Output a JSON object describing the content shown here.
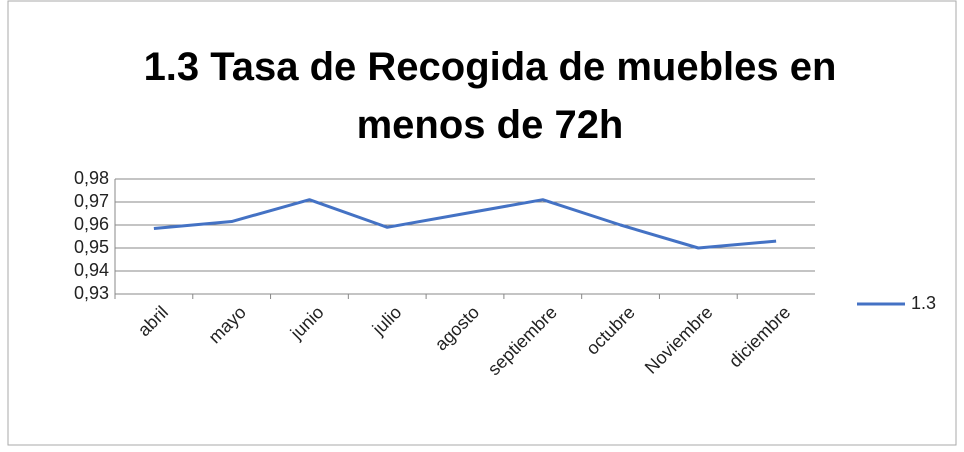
{
  "chart_data": {
    "type": "line",
    "title": "1.3 Tasa de Recogida de muebles en menos de 72h",
    "categories": [
      "abril",
      "mayo",
      "junio",
      "julio",
      "agosto",
      "septiembre",
      "octubre",
      "Noviembre",
      "diciembre"
    ],
    "series": [
      {
        "name": "1.3",
        "color": "#4472c4",
        "values": [
          0.9585,
          0.9615,
          0.971,
          0.959,
          0.965,
          0.971,
          0.96,
          0.95,
          0.953
        ]
      }
    ],
    "ylim": [
      0.93,
      0.98
    ],
    "yticks": [
      {
        "value": 0.93,
        "label": "0,93"
      },
      {
        "value": 0.94,
        "label": "0,94"
      },
      {
        "value": 0.95,
        "label": "0,95"
      },
      {
        "value": 0.96,
        "label": "0,96"
      },
      {
        "value": 0.97,
        "label": "0,97"
      },
      {
        "value": 0.98,
        "label": "0,98"
      }
    ],
    "grid": true,
    "legend": "right"
  }
}
